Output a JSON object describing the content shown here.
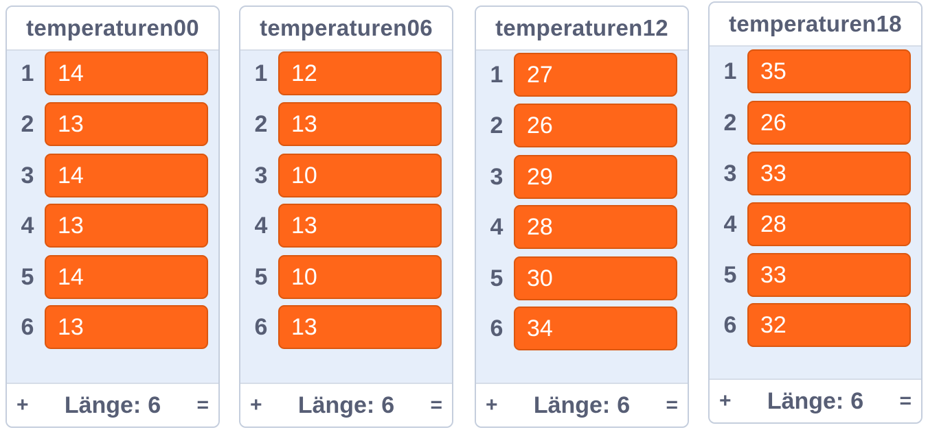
{
  "lists": [
    {
      "title": "temperaturen00",
      "items": [
        "14",
        "13",
        "14",
        "13",
        "14",
        "13"
      ],
      "length_label": "Länge:",
      "length_value": "6",
      "add_symbol": "+",
      "resize_symbol": "="
    },
    {
      "title": "temperaturen06",
      "items": [
        "12",
        "13",
        "10",
        "13",
        "10",
        "13"
      ],
      "length_label": "Länge:",
      "length_value": "6",
      "add_symbol": "+",
      "resize_symbol": "="
    },
    {
      "title": "temperaturen12",
      "items": [
        "27",
        "26",
        "29",
        "28",
        "30",
        "34"
      ],
      "length_label": "Länge:",
      "length_value": "6",
      "add_symbol": "+",
      "resize_symbol": "="
    },
    {
      "title": "temperaturen18",
      "items": [
        "35",
        "26",
        "33",
        "28",
        "33",
        "32"
      ],
      "length_label": "Länge:",
      "length_value": "6",
      "add_symbol": "+",
      "resize_symbol": "="
    }
  ],
  "item_indices": [
    "1",
    "2",
    "3",
    "4",
    "5",
    "6"
  ],
  "colors": {
    "item_fill": "#ff6619",
    "item_border": "#db5710",
    "monitor_bg": "#e6eefa",
    "text": "#575e75"
  }
}
